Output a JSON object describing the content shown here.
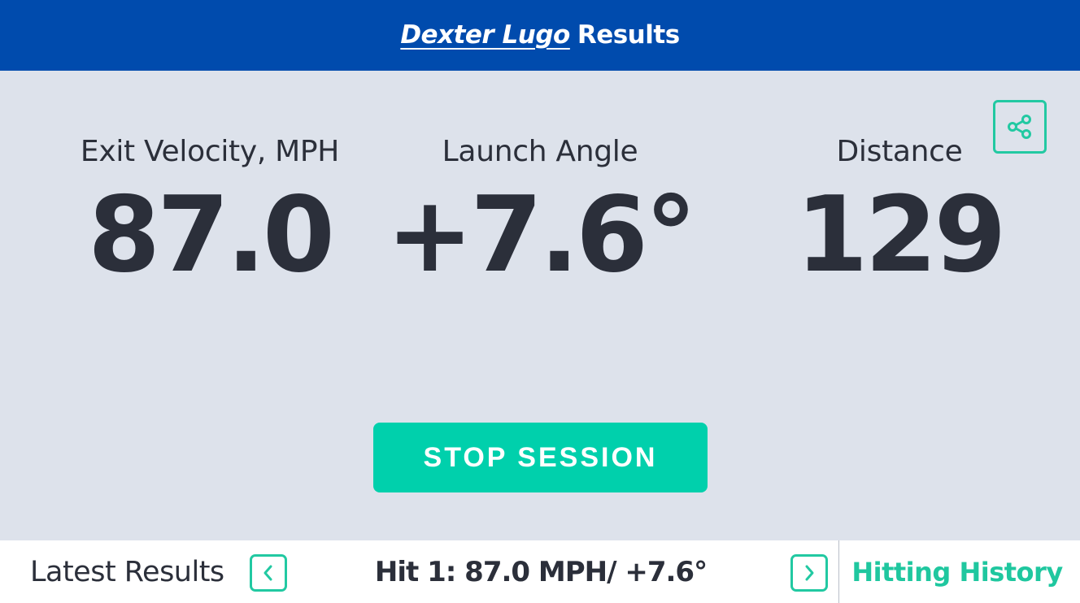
{
  "header": {
    "player_name": "Dexter Lugo",
    "title_suffix": "Results"
  },
  "metrics": [
    {
      "label": "Exit Velocity, MPH",
      "value": "87.0"
    },
    {
      "label": "Launch Angle",
      "value": "+7.6°"
    },
    {
      "label": "Distance",
      "value": "129"
    }
  ],
  "actions": {
    "share_icon": "share-icon",
    "stop_session_label": "STOP SESSION"
  },
  "footer": {
    "latest_label": "Latest Results",
    "prev_icon": "chevron-left-icon",
    "hit_summary": "Hit 1: 87.0 MPH/ +7.6°",
    "next_icon": "chevron-right-icon",
    "history_label": "Hitting History"
  },
  "colors": {
    "header_bg": "#004bad",
    "main_bg": "#dde2eb",
    "accent": "#00d0ac",
    "text": "#2b2f3a"
  }
}
